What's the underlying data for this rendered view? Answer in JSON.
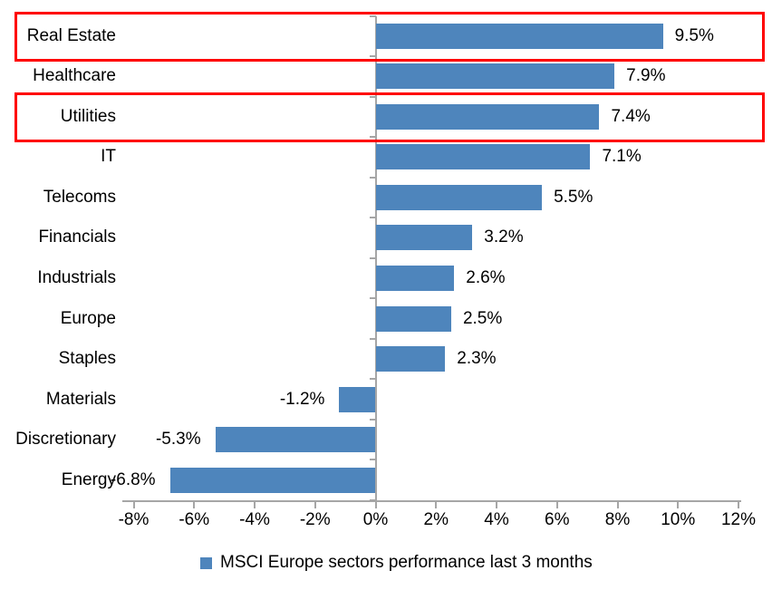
{
  "chart_data": {
    "type": "bar",
    "orientation": "horizontal",
    "title": "",
    "xlabel": "",
    "ylabel": "",
    "categories": [
      "Real Estate",
      "Healthcare",
      "Utilities",
      "IT",
      "Telecoms",
      "Financials",
      "Industrials",
      "Europe",
      "Staples",
      "Materials",
      "Discretionary",
      "Energy"
    ],
    "values": [
      9.5,
      7.9,
      7.4,
      7.1,
      5.5,
      3.2,
      2.6,
      2.5,
      2.3,
      -1.2,
      -5.3,
      -6.8
    ],
    "value_labels": [
      "9.5%",
      "7.9%",
      "7.4%",
      "7.1%",
      "5.5%",
      "3.2%",
      "2.6%",
      "2.5%",
      "2.3%",
      "-1.2%",
      "-5.3%",
      "-6.8%"
    ],
    "highlighted_categories": [
      "Real Estate",
      "Utilities"
    ],
    "x_ticks": [
      "-8%",
      "-6%",
      "-4%",
      "-2%",
      "0%",
      "2%",
      "4%",
      "6%",
      "8%",
      "10%",
      "12%"
    ],
    "x_tick_values": [
      -8,
      -6,
      -4,
      -2,
      0,
      2,
      4,
      6,
      8,
      10,
      12
    ],
    "xlim": [
      -8,
      12
    ],
    "grid": false,
    "legend": "MSCI Europe sectors performance last 3 months",
    "legend_position": "bottom",
    "colors": {
      "bar": "#4E85BC",
      "highlight_box": "#FF0000",
      "axis": "#A6A6A6",
      "text": "#000000",
      "background": "#FFFFFF"
    }
  }
}
